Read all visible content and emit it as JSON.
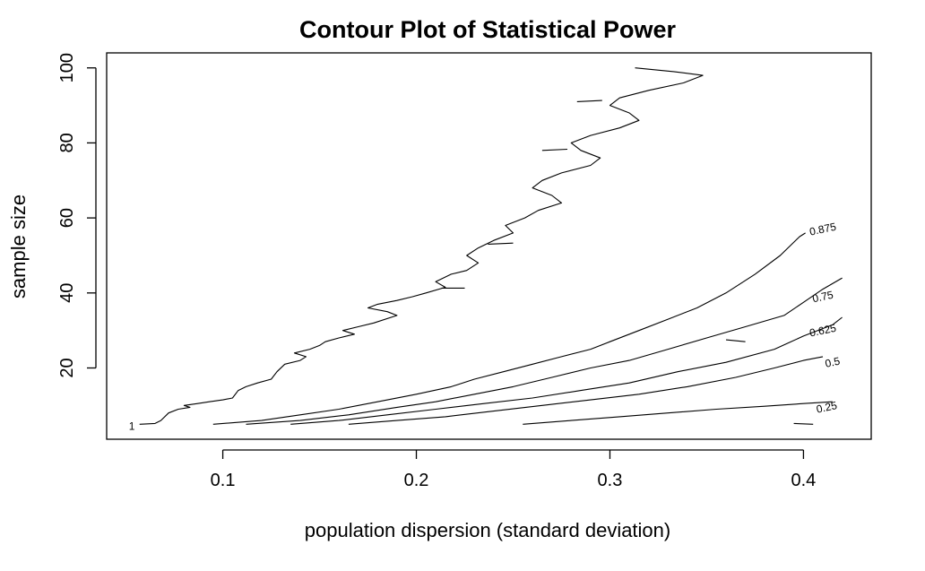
{
  "chart_data": {
    "type": "contour",
    "title": "Contour Plot of Statistical Power",
    "xlabel": "population dispersion (standard deviation)",
    "ylabel": "sample size",
    "xlim": [
      0.04,
      0.435
    ],
    "ylim": [
      1,
      104
    ],
    "x_ticks": [
      0.1,
      0.2,
      0.3,
      0.4
    ],
    "x_tick_labels": [
      "0.1",
      "0.2",
      "0.3",
      "0.4"
    ],
    "y_ticks": [
      20,
      40,
      60,
      80,
      100
    ],
    "y_tick_labels": [
      "20",
      "40",
      "60",
      "80",
      "100"
    ],
    "grid": false,
    "contours": [
      {
        "level": "1",
        "points": [
          [
            0.057,
            5
          ],
          [
            0.065,
            5.2
          ],
          [
            0.068,
            6
          ],
          [
            0.072,
            8
          ],
          [
            0.077,
            9
          ],
          [
            0.083,
            9.5
          ],
          [
            0.08,
            10
          ],
          [
            0.087,
            10.5
          ],
          [
            0.093,
            11
          ],
          [
            0.1,
            11.5
          ],
          [
            0.105,
            12
          ],
          [
            0.108,
            14
          ],
          [
            0.112,
            15
          ],
          [
            0.118,
            16
          ],
          [
            0.125,
            17
          ],
          [
            0.128,
            19
          ],
          [
            0.132,
            21
          ],
          [
            0.14,
            22
          ],
          [
            0.143,
            23
          ],
          [
            0.137,
            24
          ],
          [
            0.145,
            25
          ],
          [
            0.15,
            26
          ],
          [
            0.153,
            27
          ],
          [
            0.16,
            28
          ],
          [
            0.168,
            29
          ],
          [
            0.162,
            30
          ],
          [
            0.17,
            31
          ],
          [
            0.178,
            32
          ],
          [
            0.19,
            34
          ],
          [
            0.185,
            35
          ],
          [
            0.175,
            36
          ],
          [
            0.18,
            37
          ],
          [
            0.19,
            38
          ],
          [
            0.198,
            39
          ],
          [
            0.205,
            40
          ],
          [
            0.215,
            41.5
          ],
          [
            0.21,
            43
          ],
          [
            0.218,
            45
          ],
          [
            0.226,
            46
          ],
          [
            0.232,
            48
          ],
          [
            0.226,
            50
          ],
          [
            0.232,
            52
          ],
          [
            0.24,
            54
          ],
          [
            0.25,
            56
          ],
          [
            0.246,
            58
          ],
          [
            0.256,
            60
          ],
          [
            0.263,
            62
          ],
          [
            0.275,
            64
          ],
          [
            0.27,
            66
          ],
          [
            0.26,
            68
          ],
          [
            0.265,
            70
          ],
          [
            0.275,
            72
          ],
          [
            0.29,
            74
          ],
          [
            0.295,
            76
          ],
          [
            0.285,
            78
          ],
          [
            0.28,
            80
          ],
          [
            0.29,
            82
          ],
          [
            0.305,
            84
          ],
          [
            0.315,
            86
          ],
          [
            0.31,
            88
          ],
          [
            0.3,
            90
          ],
          [
            0.305,
            92
          ],
          [
            0.32,
            94
          ],
          [
            0.338,
            96
          ],
          [
            0.348,
            98
          ],
          [
            0.333,
            99
          ],
          [
            0.313,
            100
          ]
        ]
      },
      {
        "level": "0.875",
        "points": [
          [
            0.095,
            5
          ],
          [
            0.12,
            6
          ],
          [
            0.14,
            7.5
          ],
          [
            0.16,
            9
          ],
          [
            0.18,
            11
          ],
          [
            0.2,
            13
          ],
          [
            0.218,
            15
          ],
          [
            0.23,
            17
          ],
          [
            0.245,
            19
          ],
          [
            0.26,
            21
          ],
          [
            0.275,
            23
          ],
          [
            0.29,
            25
          ],
          [
            0.3,
            27
          ],
          [
            0.315,
            30
          ],
          [
            0.33,
            33
          ],
          [
            0.345,
            36
          ],
          [
            0.36,
            40
          ],
          [
            0.375,
            45
          ],
          [
            0.388,
            50
          ],
          [
            0.398,
            55
          ],
          [
            0.401,
            56
          ]
        ]
      },
      {
        "level": "0.75",
        "points": [
          [
            0.112,
            5
          ],
          [
            0.14,
            6
          ],
          [
            0.165,
            7.5
          ],
          [
            0.19,
            9.5
          ],
          [
            0.21,
            11
          ],
          [
            0.23,
            13
          ],
          [
            0.25,
            15
          ],
          [
            0.27,
            17.5
          ],
          [
            0.29,
            20
          ],
          [
            0.31,
            22
          ],
          [
            0.33,
            25
          ],
          [
            0.35,
            28
          ],
          [
            0.37,
            31
          ],
          [
            0.39,
            34
          ],
          [
            0.4,
            37.5
          ],
          [
            0.41,
            41
          ],
          [
            0.42,
            44
          ]
        ]
      },
      {
        "level": "0.625",
        "points": [
          [
            0.135,
            5
          ],
          [
            0.16,
            6
          ],
          [
            0.185,
            7.5
          ],
          [
            0.21,
            9
          ],
          [
            0.235,
            10.5
          ],
          [
            0.26,
            12
          ],
          [
            0.285,
            14
          ],
          [
            0.31,
            16
          ],
          [
            0.335,
            19
          ],
          [
            0.36,
            21.5
          ],
          [
            0.385,
            25
          ],
          [
            0.4,
            28.5
          ],
          [
            0.415,
            31.5
          ],
          [
            0.42,
            33.5
          ]
        ]
      },
      {
        "level": "0.5",
        "points": [
          [
            0.165,
            5
          ],
          [
            0.19,
            6
          ],
          [
            0.215,
            7
          ],
          [
            0.24,
            8.5
          ],
          [
            0.265,
            10
          ],
          [
            0.29,
            11.5
          ],
          [
            0.315,
            13
          ],
          [
            0.34,
            15
          ],
          [
            0.365,
            17.5
          ],
          [
            0.385,
            20
          ],
          [
            0.4,
            22
          ],
          [
            0.41,
            23
          ]
        ]
      },
      {
        "level": "0.25",
        "points": [
          [
            0.255,
            5
          ],
          [
            0.28,
            6
          ],
          [
            0.305,
            7
          ],
          [
            0.33,
            8
          ],
          [
            0.355,
            9
          ],
          [
            0.38,
            9.8
          ],
          [
            0.4,
            10.5
          ],
          [
            0.415,
            11
          ]
        ]
      },
      {
        "level": "0.25",
        "points": [
          [
            0.395,
            5.2
          ],
          [
            0.405,
            5
          ]
        ]
      },
      {
        "level": "1",
        "points": [
          [
            0.213,
            41.3
          ],
          [
            0.225,
            41.3
          ]
        ]
      },
      {
        "level": "1",
        "points": [
          [
            0.237,
            53
          ],
          [
            0.25,
            53.3
          ]
        ]
      },
      {
        "level": "1",
        "points": [
          [
            0.265,
            78
          ],
          [
            0.278,
            78.3
          ]
        ]
      },
      {
        "level": "1",
        "points": [
          [
            0.283,
            91
          ],
          [
            0.296,
            91.3
          ]
        ]
      },
      {
        "level": "0.625",
        "points": [
          [
            0.36,
            27.5
          ],
          [
            0.37,
            27
          ]
        ]
      }
    ],
    "contour_labels": [
      {
        "text": "1",
        "x": 0.053,
        "y": 4.5
      },
      {
        "text": "0.875",
        "x": 0.41,
        "y": 57
      },
      {
        "text": "0.75",
        "x": 0.41,
        "y": 39
      },
      {
        "text": "0.625",
        "x": 0.41,
        "y": 30
      },
      {
        "text": "0.5",
        "x": 0.415,
        "y": 21.5
      },
      {
        "text": "0.25",
        "x": 0.412,
        "y": 9.5
      }
    ]
  }
}
